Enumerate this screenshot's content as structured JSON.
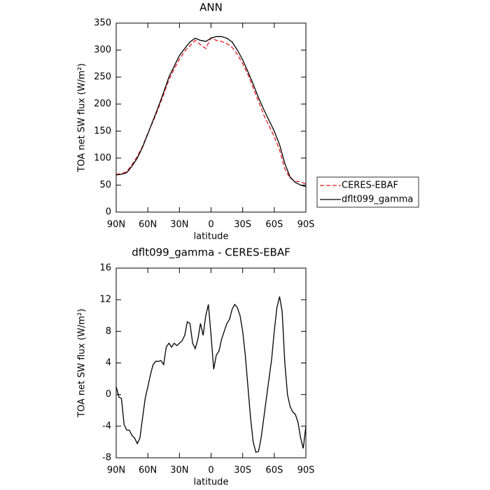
{
  "chart_data": [
    {
      "type": "line",
      "title": "ANN",
      "xlabel": "latitude",
      "ylabel": "TOA net SW flux (W/m²)",
      "x": [
        90,
        85,
        80,
        75,
        70,
        65,
        60,
        55,
        50,
        45,
        40,
        35,
        30,
        25,
        20,
        15,
        10,
        5,
        0,
        -5,
        -10,
        -15,
        -20,
        -25,
        -30,
        -35,
        -40,
        -45,
        -50,
        -55,
        -60,
        -65,
        -70,
        -75,
        -80,
        -85,
        -90
      ],
      "series": [
        {
          "name": "CERES-EBAF",
          "color": "#e8191c",
          "line_style": "dashed",
          "values": [
            70,
            71,
            75,
            88,
            103,
            122,
            146,
            168,
            192,
            218,
            245,
            265,
            283,
            298,
            308,
            318,
            310,
            303,
            323,
            318,
            316,
            312,
            305,
            292,
            275,
            255,
            230,
            205,
            180,
            160,
            140,
            115,
            80,
            63,
            57,
            56,
            52
          ]
        },
        {
          "name": "dflt099_gamma",
          "color": "#000000",
          "line_style": "solid",
          "values": [
            69,
            70,
            73,
            85,
            100,
            120,
            145,
            170,
            195,
            222,
            250,
            270,
            290,
            303,
            315,
            322,
            318,
            316,
            322,
            325,
            325,
            322,
            315,
            300,
            282,
            260,
            237,
            212,
            190,
            170,
            150,
            125,
            90,
            65,
            55,
            50,
            47
          ]
        }
      ],
      "xlim": [
        90,
        -90
      ],
      "xticks": [
        {
          "value": 90,
          "label": "90N"
        },
        {
          "value": 60,
          "label": "60N"
        },
        {
          "value": 30,
          "label": "30N"
        },
        0,
        {
          "value": -30,
          "label": "30S"
        },
        {
          "value": -60,
          "label": "60S"
        },
        {
          "value": -90,
          "label": "90S"
        }
      ],
      "ylim": [
        0,
        350
      ],
      "yticks": [
        0,
        50,
        100,
        150,
        200,
        250,
        300,
        350
      ],
      "legend": "right"
    },
    {
      "type": "line",
      "title": "dflt099_gamma - CERES-EBAF",
      "xlabel": "latitude",
      "ylabel": "TOA net SW flux (W/m²)",
      "x": [
        90,
        87.5,
        85,
        82.5,
        80,
        77.5,
        75,
        72.5,
        70,
        67.5,
        65,
        62.5,
        60,
        57.5,
        55,
        52.5,
        50,
        47.5,
        45,
        42.5,
        40,
        37.5,
        35,
        32.5,
        30,
        27.5,
        25,
        22.5,
        20,
        17.5,
        15,
        12.5,
        10,
        7.5,
        5,
        2.5,
        0,
        -2.5,
        -5,
        -7.5,
        -10,
        -12.5,
        -15,
        -17.5,
        -20,
        -22.5,
        -25,
        -27.5,
        -30,
        -32.5,
        -35,
        -37.5,
        -40,
        -42.5,
        -45,
        -47.5,
        -50,
        -52.5,
        -55,
        -57.5,
        -60,
        -62.5,
        -65,
        -67.5,
        -70,
        -72.5,
        -75,
        -77.5,
        -80,
        -82.5,
        -85,
        -87.5,
        -90
      ],
      "series": [
        {
          "color": "#000000",
          "line_style": "solid",
          "values": [
            1.0,
            -0.3,
            -0.5,
            -3.8,
            -4.5,
            -4.5,
            -5.2,
            -5.5,
            -6.2,
            -5.5,
            -3.0,
            -0.5,
            1.0,
            2.5,
            3.8,
            4.2,
            4.2,
            4.3,
            3.8,
            6.0,
            6.5,
            6.0,
            6.5,
            6.2,
            6.5,
            6.8,
            7.5,
            9.2,
            9.0,
            6.5,
            5.8,
            7.0,
            9.0,
            7.5,
            10.0,
            11.4,
            7.5,
            3.2,
            5.0,
            5.5,
            7.0,
            8.0,
            9.0,
            9.5,
            10.8,
            11.4,
            11.0,
            10.0,
            8.0,
            5.0,
            1.0,
            -3.0,
            -6.0,
            -7.3,
            -7.2,
            -5.5,
            -3.0,
            -0.5,
            2.0,
            4.5,
            8.0,
            11.0,
            12.4,
            10.5,
            4.0,
            0.0,
            -1.5,
            -2.2,
            -2.5,
            -3.5,
            -5.5,
            -6.8,
            -4.0
          ]
        }
      ],
      "xlim": [
        90,
        -90
      ],
      "xticks": [
        {
          "value": 90,
          "label": "90N"
        },
        {
          "value": 60,
          "label": "60N"
        },
        {
          "value": 30,
          "label": "30N"
        },
        0,
        {
          "value": -30,
          "label": "30S"
        },
        {
          "value": -60,
          "label": "60S"
        },
        {
          "value": -90,
          "label": "90S"
        }
      ],
      "ylim": [
        -8,
        16
      ],
      "yticks": [
        -8,
        -4,
        0,
        4,
        8,
        12,
        16
      ]
    }
  ]
}
